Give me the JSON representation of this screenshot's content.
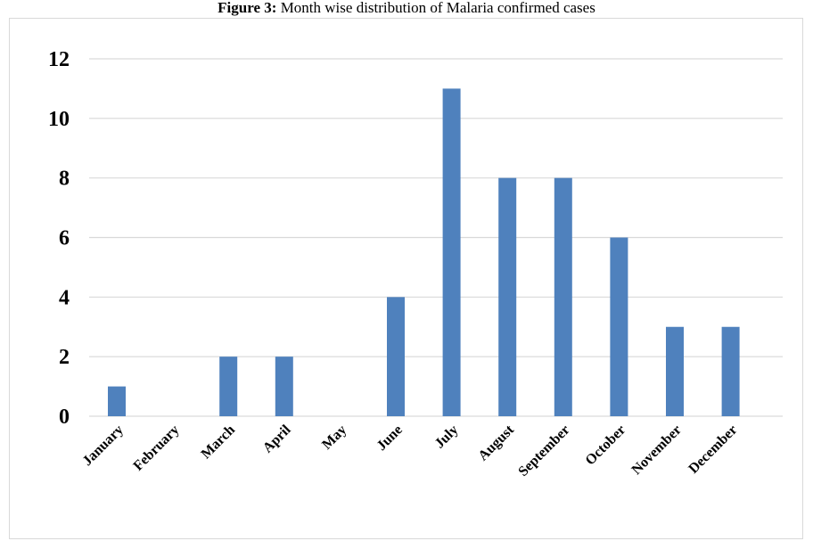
{
  "caption": {
    "prefix": "Figure 3:",
    "text": "Month wise distribution of Malaria confirmed cases"
  },
  "colors": {
    "bar": "#4f81bd",
    "grid": "#d9d9d9"
  },
  "chart_data": {
    "type": "bar",
    "title": "",
    "xlabel": "",
    "ylabel": "",
    "categories": [
      "January",
      "February",
      "March",
      "April",
      "May",
      "June",
      "July",
      "August",
      "September",
      "October",
      "November",
      "December"
    ],
    "values": [
      1,
      0,
      2,
      2,
      0,
      4,
      11,
      8,
      8,
      6,
      3,
      3
    ],
    "ylim": [
      0,
      12
    ],
    "yticks": [
      0,
      2,
      4,
      6,
      8,
      10,
      12
    ],
    "grid": true,
    "legend": "none"
  }
}
